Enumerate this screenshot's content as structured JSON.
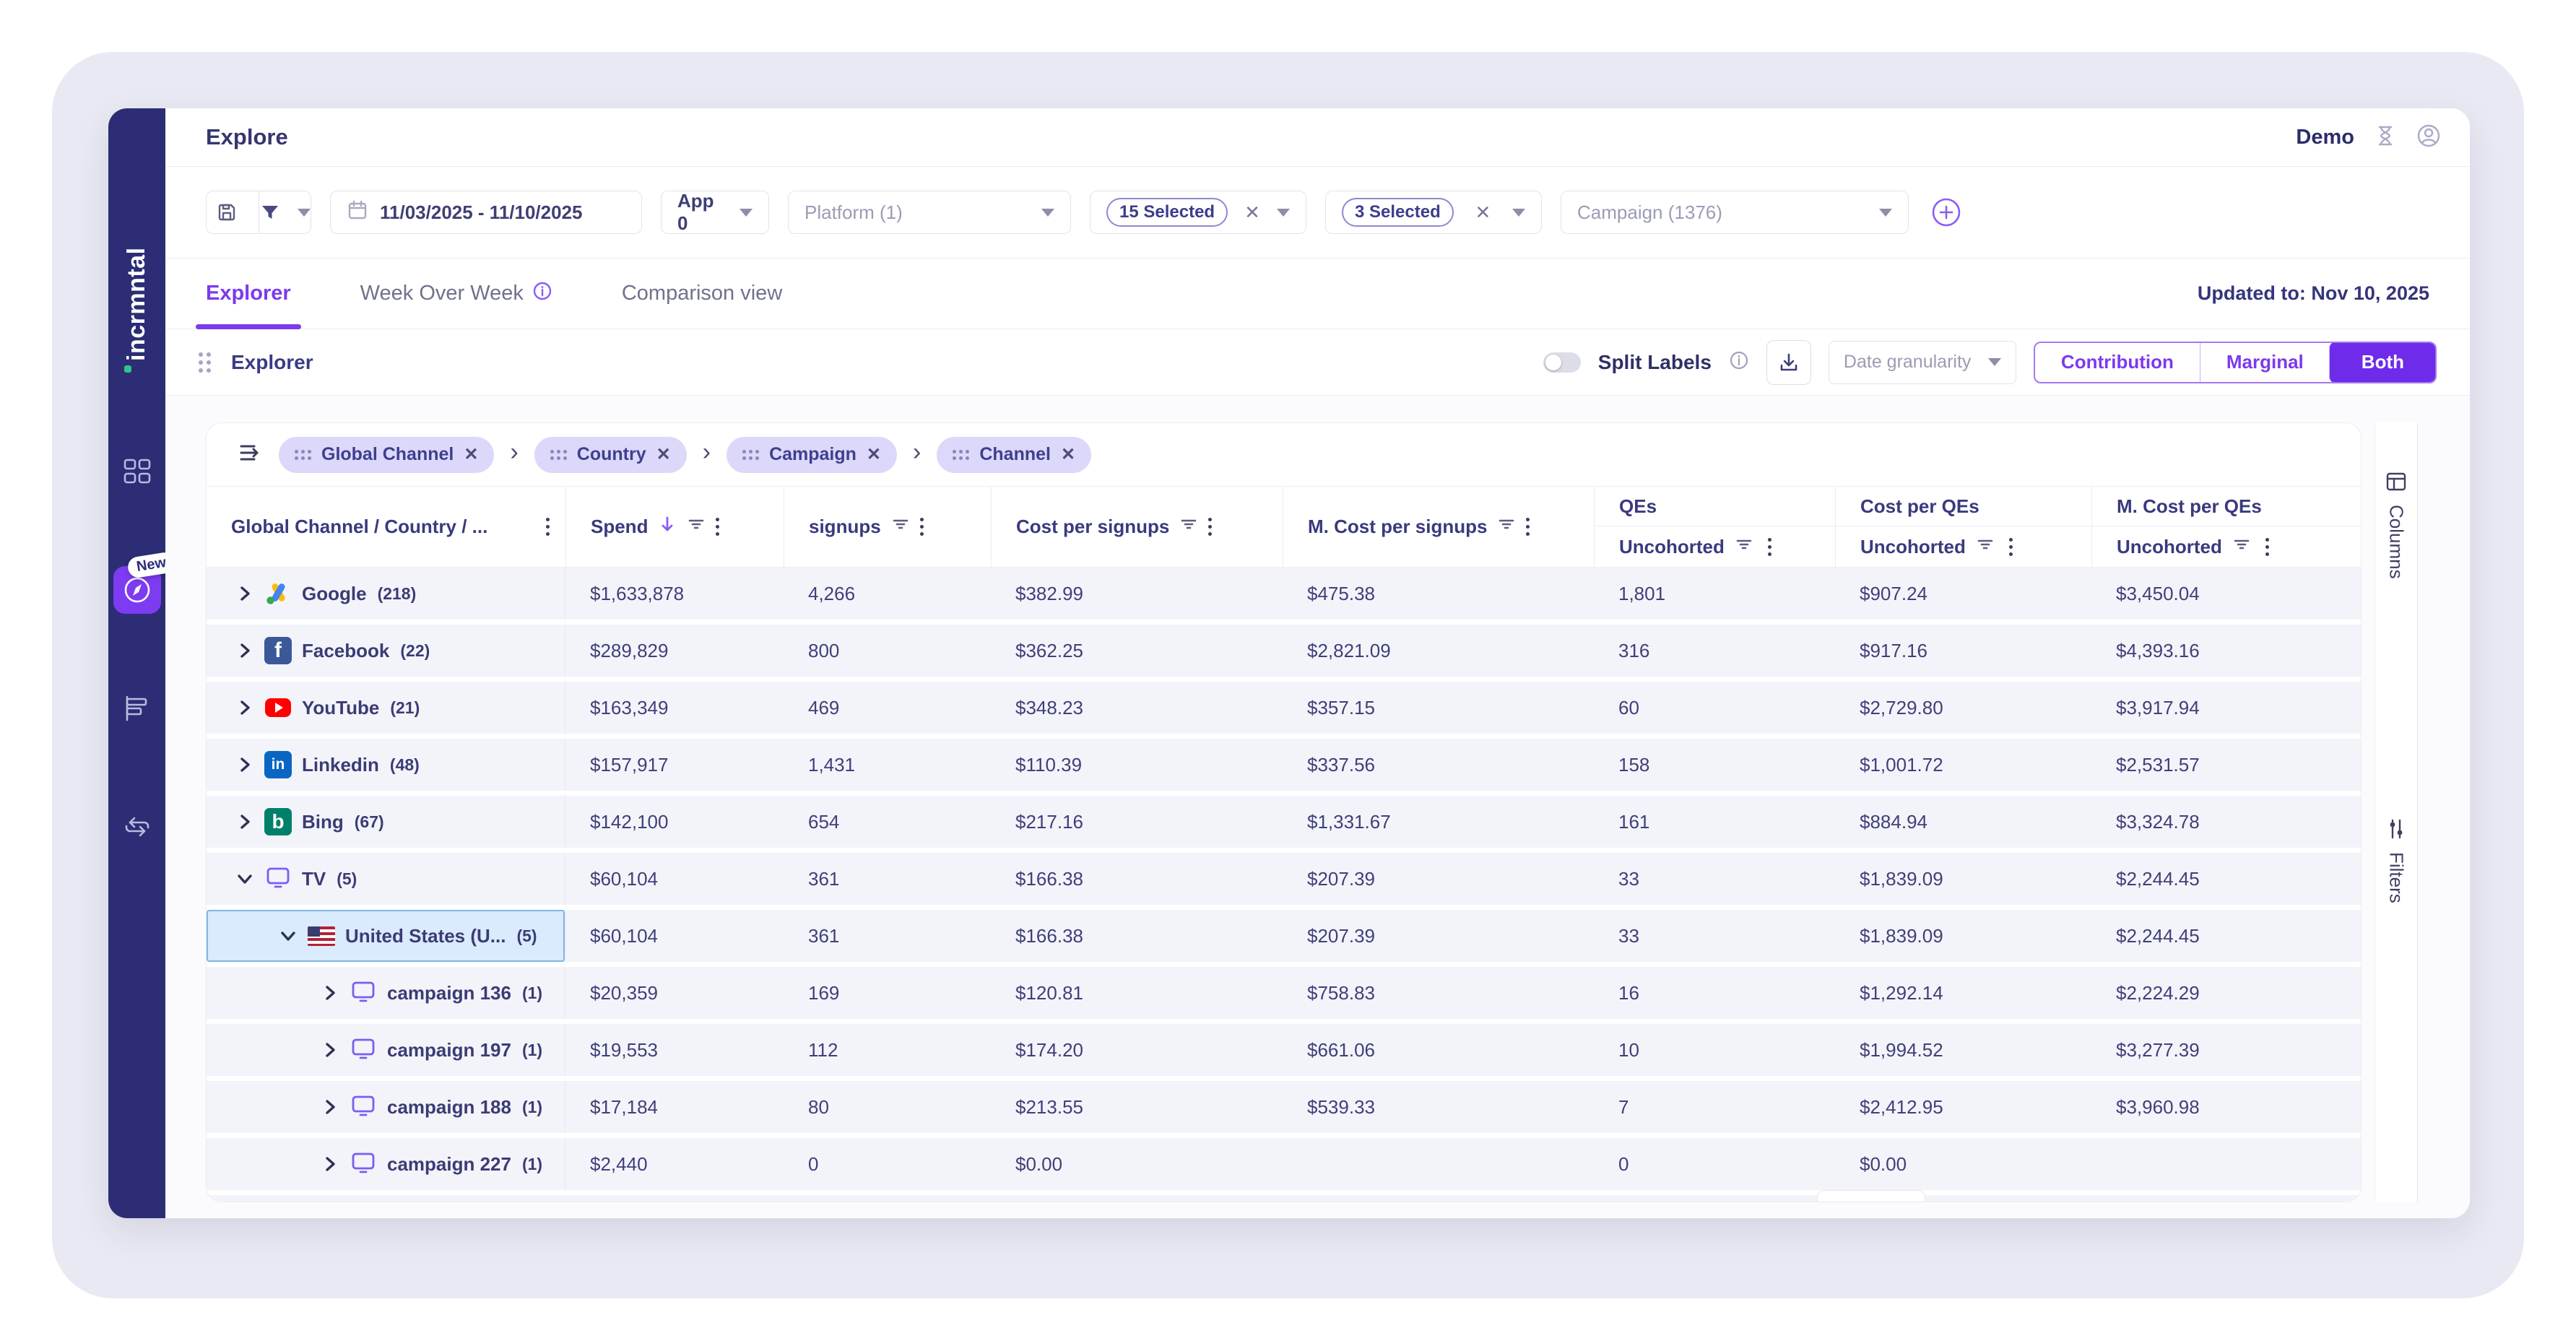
{
  "sidebar": {
    "logo": "incrmntal",
    "active_badge": "New"
  },
  "header": {
    "title": "Explore",
    "user_label": "Demo"
  },
  "filters": {
    "date_range": "11/03/2025 - 11/10/2025",
    "app": "App 0",
    "platform_placeholder": "Platform (1)",
    "selected_chip_1": "15 Selected",
    "selected_chip_2": "3 Selected",
    "campaign_placeholder": "Campaign (1376)"
  },
  "tabs": {
    "explorer": "Explorer",
    "week_over_week": "Week Over Week",
    "comparison": "Comparison view",
    "updated": "Updated to: Nov 10, 2025"
  },
  "toolbar": {
    "view_label": "Explorer",
    "split_labels": "Split Labels",
    "date_granularity": "Date granularity",
    "segments": [
      "Contribution",
      "Marginal",
      "Both"
    ],
    "active_segment": "Both"
  },
  "breadcrumb": {
    "chips": [
      "Global Channel",
      "Country",
      "Campaign",
      "Channel"
    ]
  },
  "table": {
    "columns": {
      "name": "Global Channel / Country / ...",
      "metrics": [
        "Spend",
        "signups",
        "Cost per signups",
        "M. Cost per signups"
      ],
      "groups": [
        "QEs",
        "Cost per QEs",
        "M. Cost per QEs"
      ],
      "uncohorted": "Uncohorted"
    },
    "rows": [
      {
        "level": 1,
        "icon": "google",
        "name": "Google",
        "count": "218",
        "expanded": false,
        "selected": false,
        "values": [
          "$1,633,878",
          "4,266",
          "$382.99",
          "$475.38",
          "1,801",
          "$907.24",
          "$3,450.04"
        ]
      },
      {
        "level": 1,
        "icon": "facebook",
        "name": "Facebook",
        "count": "22",
        "expanded": false,
        "selected": false,
        "values": [
          "$289,829",
          "800",
          "$362.25",
          "$2,821.09",
          "316",
          "$917.16",
          "$4,393.16"
        ]
      },
      {
        "level": 1,
        "icon": "youtube",
        "name": "YouTube",
        "count": "21",
        "expanded": false,
        "selected": false,
        "values": [
          "$163,349",
          "469",
          "$348.23",
          "$357.15",
          "60",
          "$2,729.80",
          "$3,917.94"
        ]
      },
      {
        "level": 1,
        "icon": "linkedin",
        "name": "Linkedin",
        "count": "48",
        "expanded": false,
        "selected": false,
        "values": [
          "$157,917",
          "1,431",
          "$110.39",
          "$337.56",
          "158",
          "$1,001.72",
          "$2,531.57"
        ]
      },
      {
        "level": 1,
        "icon": "bing",
        "name": "Bing",
        "count": "67",
        "expanded": false,
        "selected": false,
        "values": [
          "$142,100",
          "654",
          "$217.16",
          "$1,331.67",
          "161",
          "$884.94",
          "$3,324.78"
        ]
      },
      {
        "level": 1,
        "icon": "tv",
        "name": "TV",
        "count": "5",
        "expanded": true,
        "selected": false,
        "values": [
          "$60,104",
          "361",
          "$166.38",
          "$207.39",
          "33",
          "$1,839.09",
          "$2,244.45"
        ]
      },
      {
        "level": 2,
        "icon": "us-flag",
        "name": "United States (U...",
        "count": "5",
        "expanded": true,
        "selected": true,
        "values": [
          "$60,104",
          "361",
          "$166.38",
          "$207.39",
          "33",
          "$1,839.09",
          "$2,244.45"
        ]
      },
      {
        "level": 3,
        "icon": "campaign",
        "name": "campaign 136",
        "count": "1",
        "expanded": false,
        "selected": false,
        "values": [
          "$20,359",
          "169",
          "$120.81",
          "$758.83",
          "16",
          "$1,292.14",
          "$2,224.29"
        ]
      },
      {
        "level": 3,
        "icon": "campaign",
        "name": "campaign 197",
        "count": "1",
        "expanded": false,
        "selected": false,
        "values": [
          "$19,553",
          "112",
          "$174.20",
          "$661.06",
          "10",
          "$1,994.52",
          "$3,277.39"
        ]
      },
      {
        "level": 3,
        "icon": "campaign",
        "name": "campaign 188",
        "count": "1",
        "expanded": false,
        "selected": false,
        "values": [
          "$17,184",
          "80",
          "$213.55",
          "$539.33",
          "7",
          "$2,412.95",
          "$3,960.98"
        ]
      },
      {
        "level": 3,
        "icon": "campaign",
        "name": "campaign 227",
        "count": "1",
        "expanded": false,
        "selected": false,
        "values": [
          "$2,440",
          "0",
          "$0.00",
          "",
          "0",
          "$0.00",
          ""
        ]
      }
    ]
  },
  "side_rail": {
    "columns_label": "Columns",
    "filters_label": "Filters"
  },
  "colors": {
    "accent": "#7c3aed",
    "sidebar": "#2c2d75",
    "selected_row": "#d9ebfd",
    "row_bg": "#f3f4fa"
  }
}
